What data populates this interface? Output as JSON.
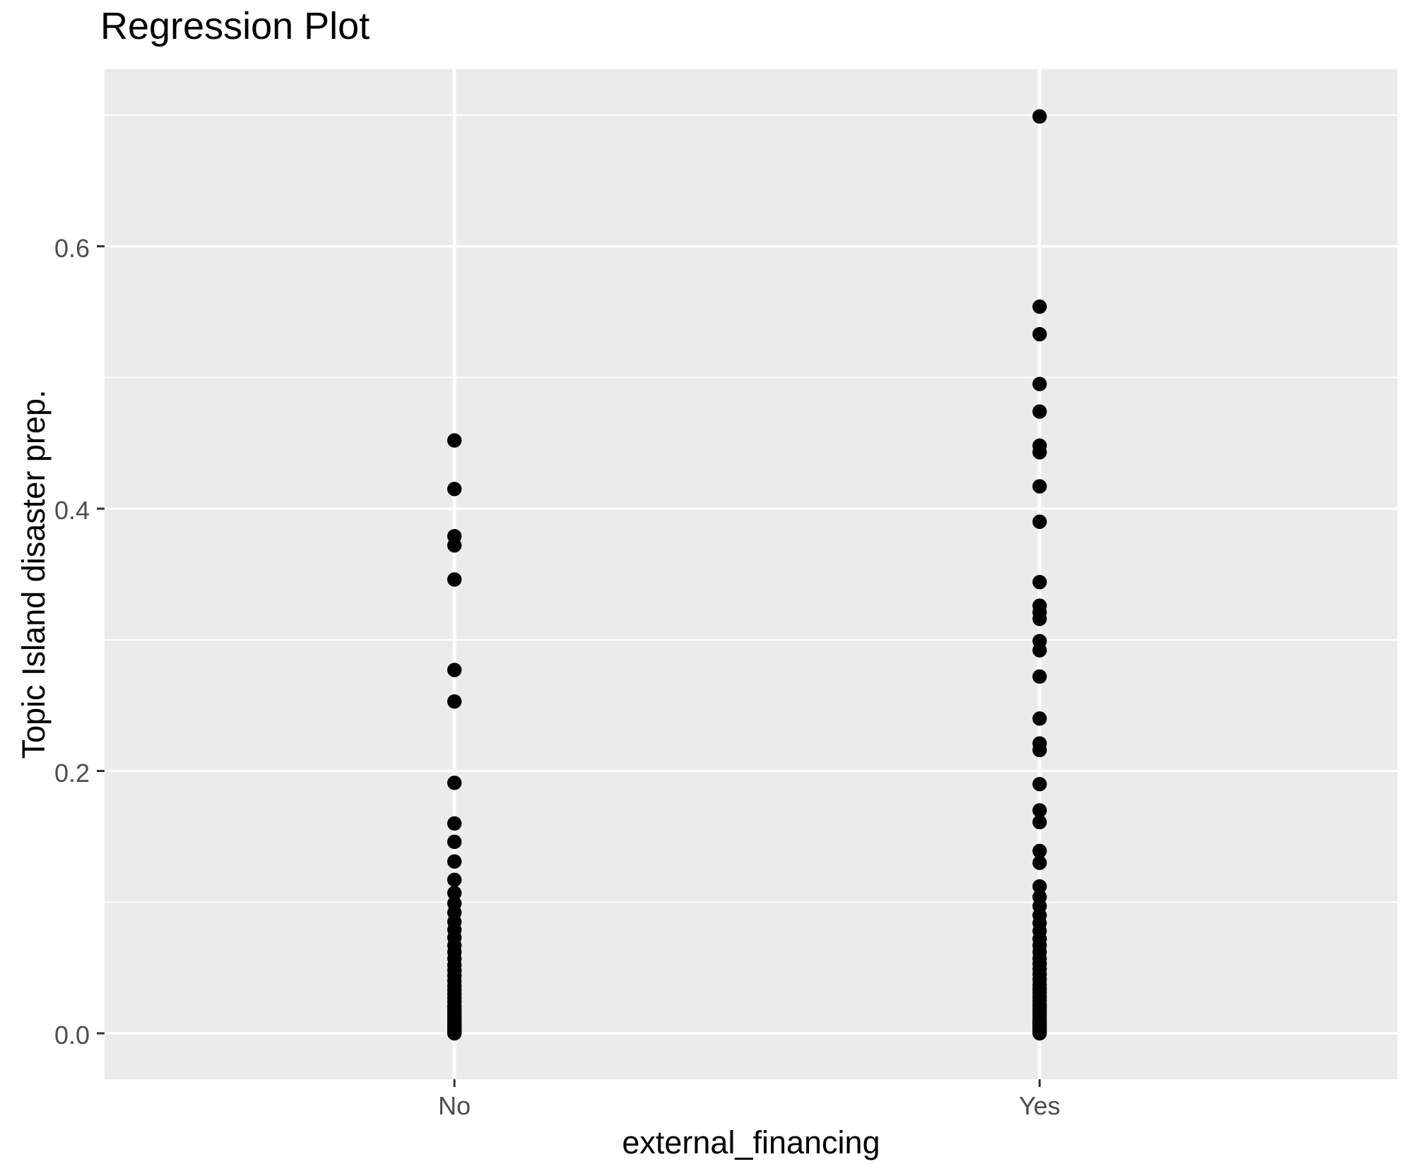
{
  "chart_data": {
    "type": "scatter",
    "title": "Regression Plot",
    "xlabel": "external_financing",
    "ylabel": "Topic Island disaster prep.",
    "categories": [
      "No",
      "Yes"
    ],
    "series": [
      {
        "name": "No",
        "values": [
          0.452,
          0.415,
          0.379,
          0.372,
          0.346,
          0.277,
          0.253,
          0.191,
          0.16,
          0.146,
          0.131,
          0.117,
          0.107,
          0.099,
          0.092,
          0.085,
          0.079,
          0.073,
          0.067,
          0.062,
          0.057,
          0.052,
          0.048,
          0.044,
          0.04,
          0.036,
          0.033,
          0.03,
          0.027,
          0.024,
          0.021,
          0.019,
          0.017,
          0.015,
          0.013,
          0.011,
          0.01,
          0.008,
          0.007,
          0.006,
          0.005,
          0.004,
          0.003,
          0.002,
          0.001,
          0.0
        ]
      },
      {
        "name": "Yes",
        "values": [
          0.699,
          0.554,
          0.533,
          0.495,
          0.474,
          0.448,
          0.443,
          0.417,
          0.39,
          0.344,
          0.326,
          0.321,
          0.316,
          0.299,
          0.292,
          0.272,
          0.24,
          0.221,
          0.216,
          0.19,
          0.17,
          0.161,
          0.139,
          0.13,
          0.112,
          0.104,
          0.097,
          0.09,
          0.084,
          0.078,
          0.072,
          0.067,
          0.062,
          0.057,
          0.053,
          0.049,
          0.045,
          0.041,
          0.037,
          0.034,
          0.031,
          0.028,
          0.025,
          0.022,
          0.02,
          0.018,
          0.016,
          0.014,
          0.012,
          0.01,
          0.009,
          0.008,
          0.007,
          0.006,
          0.005,
          0.004,
          0.003,
          0.002,
          0.001,
          0.0
        ]
      }
    ],
    "yticks": [
      0.0,
      0.2,
      0.4,
      0.6
    ],
    "ytick_labels": [
      "0.0",
      "0.2",
      "0.4",
      "0.6"
    ],
    "yticks_minor": [
      0.1,
      0.3,
      0.5,
      0.7
    ],
    "ylim": [
      -0.035,
      0.735
    ],
    "grid": true,
    "legend": false,
    "colors": {
      "panel_background": "#ebebeb",
      "grid_major": "#ffffff",
      "grid_minor": "#ffffff",
      "point": "#000000",
      "tick_mark": "#333333",
      "tick_label": "#4d4d4d",
      "title_text": "#000000",
      "axis_title_text": "#000000"
    }
  }
}
